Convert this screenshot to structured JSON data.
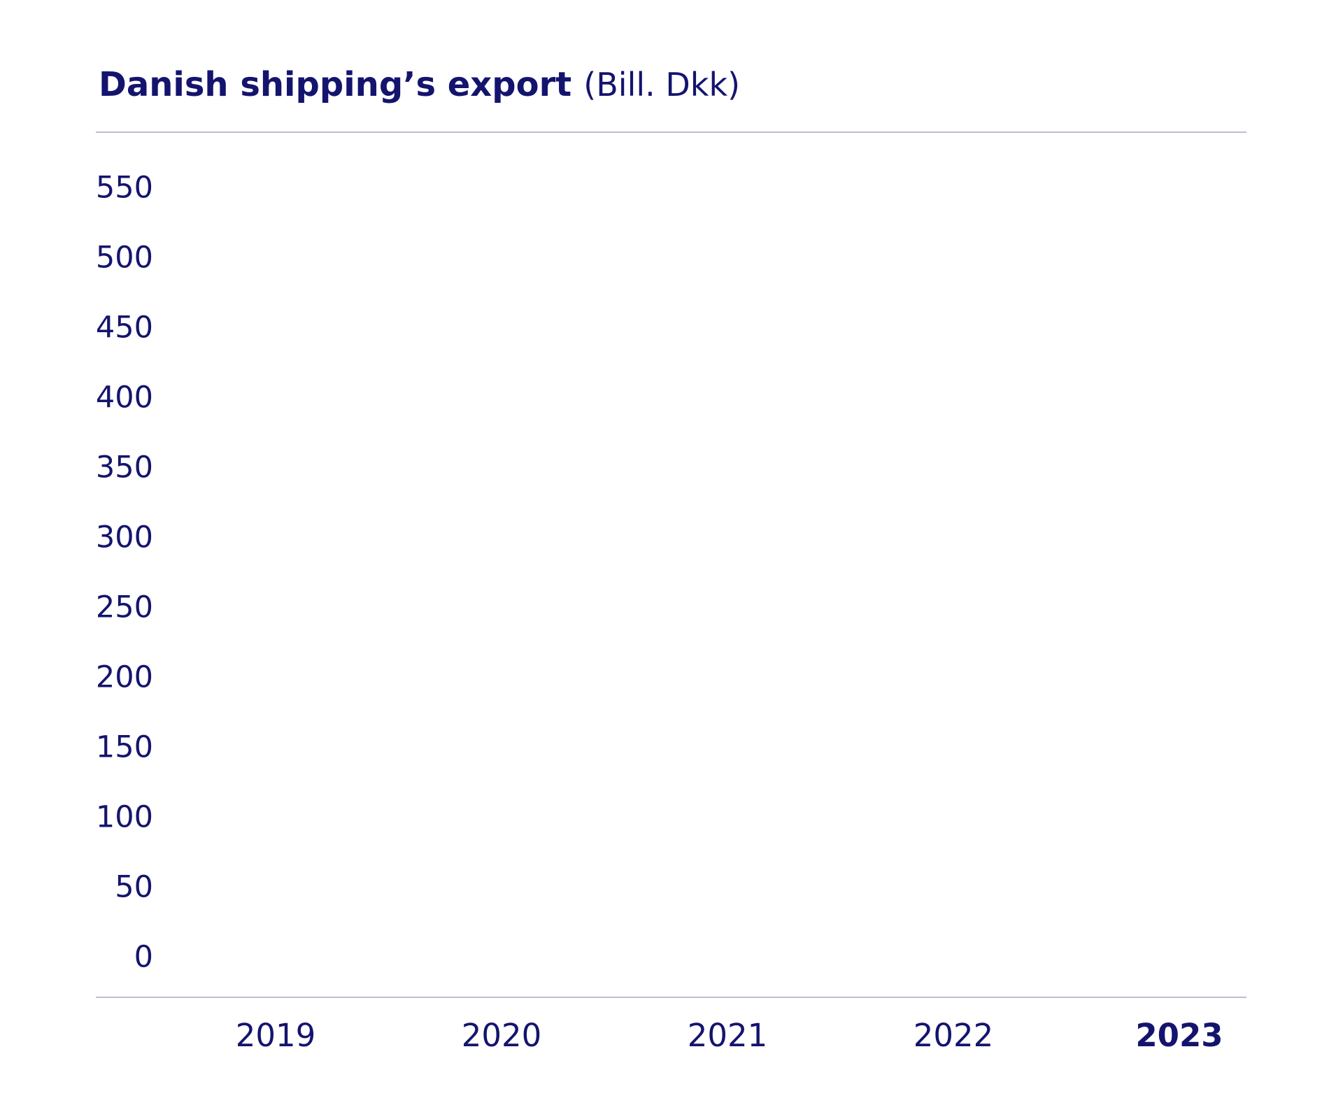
{
  "chart_data": {
    "type": "bar",
    "title": "Danish shipping’s export",
    "subtitle": "(Bill. Dkk)",
    "categories": [
      "2019",
      "2020",
      "2021",
      "2022",
      "2023"
    ],
    "ylim": [
      0,
      550
    ],
    "yticks": [
      0,
      50,
      100,
      150,
      200,
      250,
      300,
      350,
      400,
      450,
      500,
      550
    ]
  }
}
